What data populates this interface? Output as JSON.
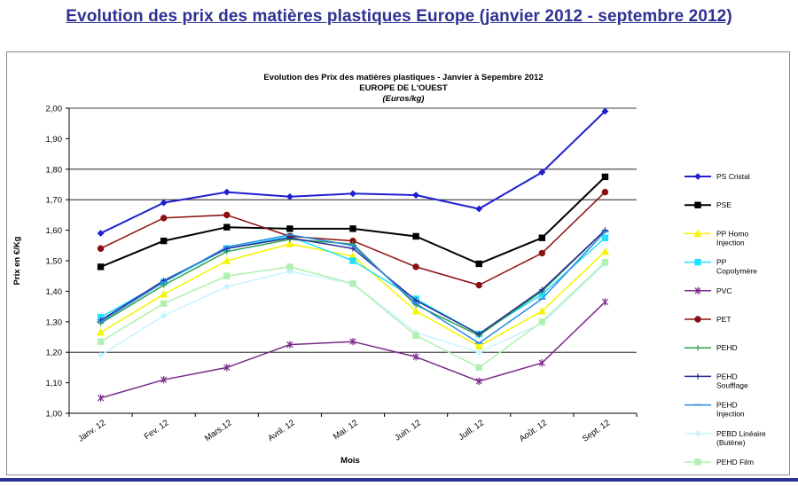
{
  "heading": "Evolution des prix des matières plastiques Europe  (janvier 2012 - septembre 2012)",
  "chart_data": {
    "type": "line",
    "title": "Evolution des Prix des matières plastiques - Janvier à Sepembre 2012",
    "subtitle": "EUROPE DE L'OUEST",
    "unit_note": "(Euros/kg)",
    "xlabel": "Mois",
    "ylabel": "Prix en €/Kg",
    "ylim": [
      1.0,
      2.0
    ],
    "yticks": [
      "1,00",
      "1,10",
      "1,20",
      "1,30",
      "1,40",
      "1,50",
      "1,60",
      "1,70",
      "1,80",
      "1,90",
      "2,00"
    ],
    "grid": "horizontal at 1,20 / 1,70 / 1,80 / 2,00",
    "legend_position": "right",
    "categories": [
      "Janv. 12",
      "Fev. 12",
      "Mars.12",
      "Avril. 12",
      "Mai. 12",
      "Juin. 12",
      "Juill. 12",
      "Août. 12",
      "Sept. 12"
    ],
    "series": [
      {
        "name": "PS Cristal",
        "color": "#1f1fd0",
        "marker": "diamond",
        "width": 2,
        "values": [
          1.59,
          1.69,
          1.725,
          1.71,
          1.72,
          1.715,
          1.67,
          1.79,
          1.99
        ]
      },
      {
        "name": "PSE",
        "color": "#000000",
        "marker": "square",
        "width": 2,
        "values": [
          1.48,
          1.565,
          1.61,
          1.605,
          1.605,
          1.58,
          1.49,
          1.575,
          1.775
        ]
      },
      {
        "name": "PP Homo Injection",
        "color": "#f5f500",
        "marker": "triangle",
        "width": 1.5,
        "values": [
          1.265,
          1.39,
          1.5,
          1.555,
          1.515,
          1.335,
          1.22,
          1.335,
          1.53
        ]
      },
      {
        "name": "PP Copolymère",
        "color": "#22e0ff",
        "marker": "square",
        "width": 1.5,
        "values": [
          1.315,
          1.43,
          1.54,
          1.58,
          1.5,
          1.375,
          1.26,
          1.39,
          1.575
        ]
      },
      {
        "name": "PVC",
        "color": "#7a2a8a",
        "marker": "star",
        "width": 1.5,
        "values": [
          1.05,
          1.11,
          1.15,
          1.225,
          1.235,
          1.185,
          1.105,
          1.165,
          1.365
        ]
      },
      {
        "name": "PET",
        "color": "#8a1010",
        "marker": "circle",
        "width": 1.5,
        "values": [
          1.54,
          1.64,
          1.65,
          1.58,
          1.565,
          1.48,
          1.42,
          1.525,
          1.725
        ]
      },
      {
        "name": "PEHD",
        "color": "#2aa050",
        "marker": "plus",
        "width": 1.5,
        "values": [
          1.295,
          1.42,
          1.53,
          1.57,
          1.555,
          1.355,
          1.255,
          1.4,
          1.6
        ]
      },
      {
        "name": "PEHD Soufflage",
        "color": "#2a2a9a",
        "marker": "plus",
        "width": 1.5,
        "values": [
          1.305,
          1.435,
          1.54,
          1.575,
          1.54,
          1.37,
          1.26,
          1.405,
          1.6
        ]
      },
      {
        "name": "PEHD Injection",
        "color": "#2a8ae0",
        "marker": "dash",
        "width": 1.5,
        "values": [
          1.3,
          1.43,
          1.545,
          1.585,
          1.55,
          1.36,
          1.23,
          1.375,
          1.595
        ]
      },
      {
        "name": "PEBD Linéaire (Butène)",
        "color": "#c8f4ff",
        "marker": "diamond",
        "width": 1.5,
        "values": [
          1.19,
          1.32,
          1.415,
          1.465,
          1.425,
          1.265,
          1.2,
          1.295,
          1.49
        ]
      },
      {
        "name": "PEHD Film",
        "color": "#b0f0b0",
        "marker": "square",
        "width": 1.5,
        "values": [
          1.235,
          1.36,
          1.45,
          1.48,
          1.425,
          1.255,
          1.15,
          1.3,
          1.495
        ]
      }
    ]
  }
}
